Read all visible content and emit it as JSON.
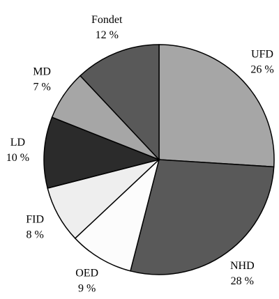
{
  "chart_data": {
    "type": "pie",
    "categories": [
      "UFD",
      "NHD",
      "OED",
      "FID",
      "LD",
      "MD",
      "Fondet"
    ],
    "values": [
      26,
      28,
      9,
      8,
      10,
      7,
      12
    ],
    "value_labels": [
      "26 %",
      "28 %",
      "9 %",
      "8 %",
      "10 %",
      "7 %",
      "12 %"
    ],
    "colors": [
      "#a6a6a6",
      "#595959",
      "#fcfcfc",
      "#eeeeee",
      "#2b2b2b",
      "#a6a6a6",
      "#595959"
    ]
  }
}
